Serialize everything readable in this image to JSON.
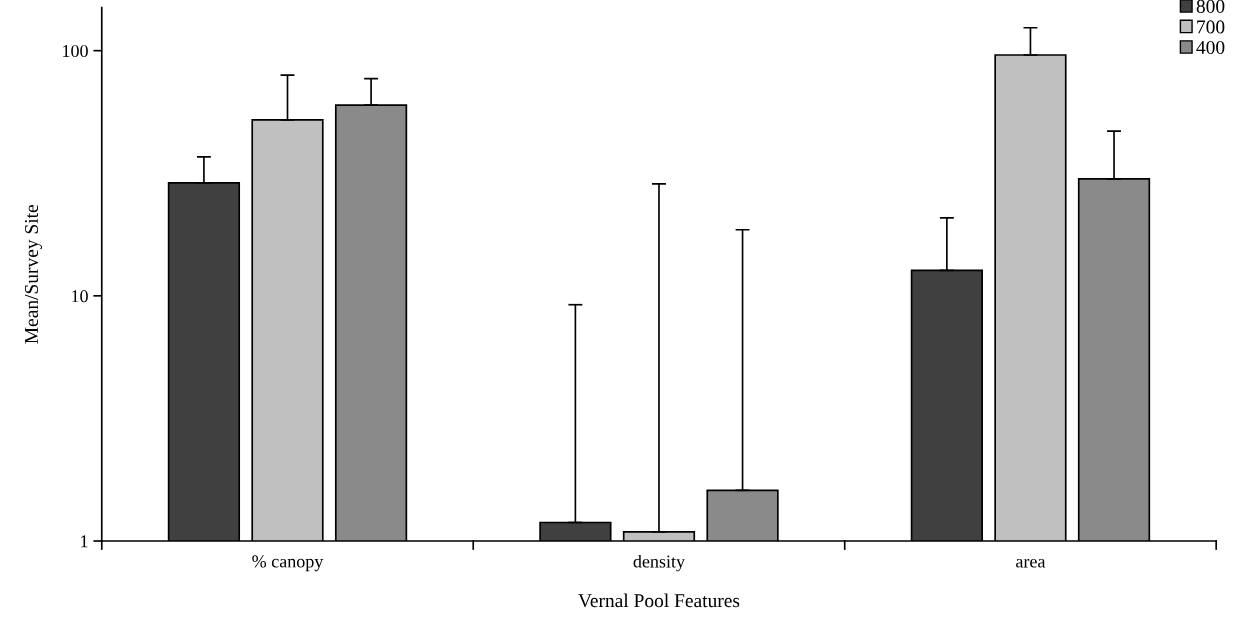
{
  "chart_data": {
    "type": "bar",
    "xlabel": "Vernal Pool Features",
    "ylabel": "Mean/Survey Site",
    "categories": [
      "% canopy",
      "density",
      "area"
    ],
    "series": [
      {
        "name": "800",
        "color": "#404040",
        "values": [
          28.9,
          1.19,
          12.7
        ],
        "errors": [
          [
            28.9,
            36.9
          ],
          [
            1.19,
            9.2
          ],
          [
            12.7,
            20.8
          ]
        ]
      },
      {
        "name": "700",
        "color": "#c0c0c0",
        "values": [
          52.2,
          1.09,
          96
        ],
        "errors": [
          [
            52.2,
            79.5
          ],
          [
            1.09,
            28.6
          ],
          [
            96,
            124
          ]
        ]
      },
      {
        "name": "400",
        "color": "#8a8a8a",
        "values": [
          60,
          1.61,
          30
        ],
        "errors": [
          [
            60,
            76.9
          ],
          [
            1.61,
            18.6
          ],
          [
            30,
            47
          ]
        ]
      }
    ],
    "log": "y",
    "ylim": [
      1,
      150
    ],
    "yticks": [
      1,
      10,
      100
    ],
    "grid": false,
    "legend": "top right"
  }
}
